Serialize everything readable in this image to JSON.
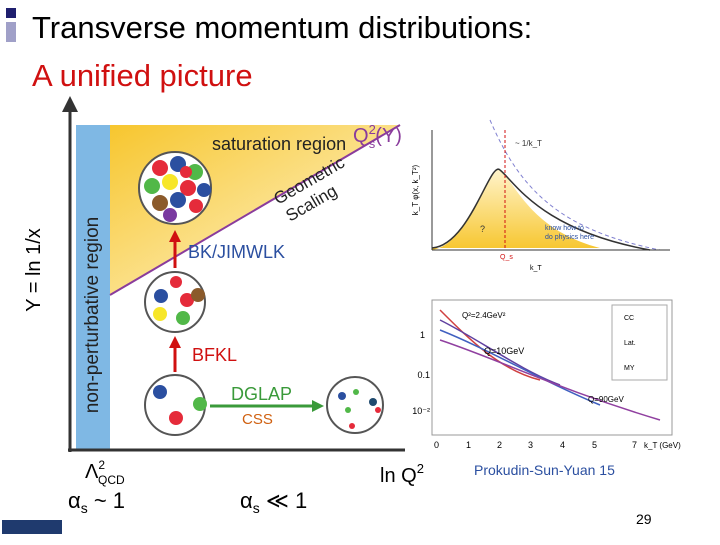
{
  "slide": {
    "title": "Transverse momentum distributions:",
    "subtitle": "A unified picture",
    "diagram": {
      "y_axis": "Y = ln 1/x",
      "nonpert": "non-perturbative region",
      "saturation": "saturation region",
      "geometric": "Geometric",
      "scaling": "Scaling",
      "qs": {
        "base": "Q",
        "sup": "2",
        "sub": "s",
        "rest": "(Y)"
      },
      "bk": "BK/JIMWLK",
      "bfkl": "BFKL",
      "dglap": "DGLAP",
      "css": "CSS",
      "lambda": {
        "base": "Λ",
        "sup": "2",
        "sub": "QCD"
      },
      "lnq": {
        "base": "ln Q",
        "sup": "2"
      },
      "alpha1": {
        "base": "α",
        "sub": "s",
        "rest": " ~ 1"
      },
      "alpha2": {
        "base": "α",
        "sub": "s",
        "rest": " ≪ 1"
      }
    },
    "inset_top": {
      "ylabel": "k_T φ(x, k_T²)",
      "trend": "~ 1/k_T",
      "know": "know how to",
      "do": "do physics here",
      "q": "?",
      "xlabel": "k_T",
      "qs": "Q_s"
    },
    "inset_bottom": {
      "q1": "Q²=2.4GeV²",
      "q2": "Q=10GeV",
      "q3": "Q=90GeV",
      "legend": [
        "CC",
        "Lat.",
        "MY"
      ],
      "xticks": [
        "0",
        "1",
        "2",
        "3",
        "4",
        "5",
        "7"
      ],
      "xlabel": "k_T (GeV)",
      "yticks": [
        "1",
        "0.1",
        "10⁻²"
      ]
    },
    "citation": "Prokudin-Sun-Yuan 15",
    "page": "29"
  }
}
